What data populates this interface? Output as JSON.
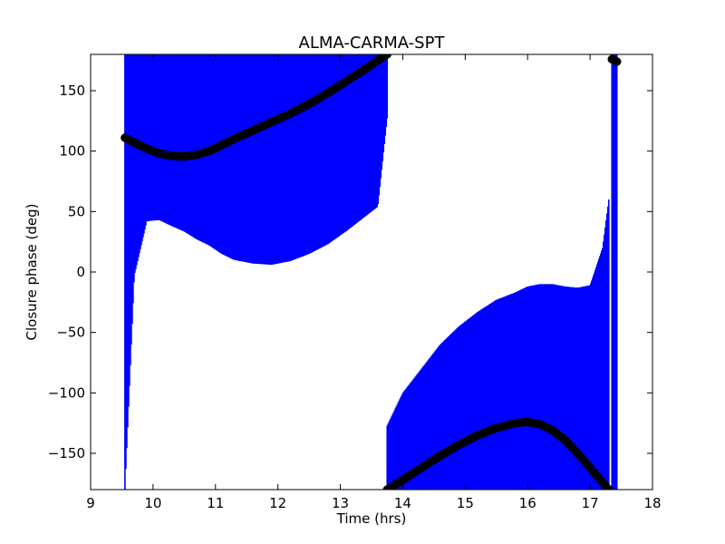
{
  "chart_data": {
    "type": "scatter",
    "title": "ALMA-CARMA-SPT",
    "xlabel": "Time (hrs)",
    "ylabel": "Closure phase (deg)",
    "xlim": [
      9,
      18
    ],
    "ylim": [
      -180,
      180
    ],
    "xticks": [
      9,
      10,
      11,
      12,
      13,
      14,
      15,
      16,
      17,
      18
    ],
    "yticks": [
      -150,
      -100,
      -50,
      0,
      50,
      100,
      150
    ],
    "ytick_labels": [
      "−150",
      "−100",
      "−50",
      "0",
      "50",
      "100",
      "150"
    ],
    "grid": false,
    "error_color": "#0000ff",
    "marker_color": "#000000",
    "series": [
      {
        "x": [
          9.55,
          9.7,
          9.9,
          10.1,
          10.3,
          10.5,
          10.7,
          10.9,
          11.1,
          11.3,
          11.6,
          11.9,
          12.2,
          12.5,
          12.8,
          13.1,
          13.4,
          13.6,
          13.75
        ],
        "y": [
          111,
          107,
          102,
          98,
          96,
          95.5,
          97,
          100,
          105,
          110,
          117,
          124,
          131,
          139,
          148,
          158,
          168,
          175,
          180
        ],
        "err_low": [
          291,
          110,
          60,
          55,
          58,
          62,
          70,
          78,
          90,
          100,
          110,
          118,
          122,
          124,
          125,
          124,
          122,
          121,
          53
        ],
        "err_high": [
          69,
          73,
          78,
          82,
          84,
          84.5,
          83,
          80,
          75,
          70,
          63,
          56,
          49,
          41,
          32,
          22,
          12,
          5,
          0
        ]
      },
      {
        "x": [
          13.75,
          14.0,
          14.3,
          14.6,
          14.9,
          15.2,
          15.5,
          15.8,
          16.0,
          16.2,
          16.4,
          16.6,
          16.8,
          17.0,
          17.2,
          17.3
        ],
        "y": [
          -180,
          -172,
          -162,
          -152,
          -143,
          -135,
          -129,
          -125,
          -124,
          -126,
          -131,
          -139,
          -150,
          -162,
          -174,
          -180
        ],
        "err_low": [
          0,
          8,
          18,
          28,
          37,
          45,
          51,
          55,
          56,
          54,
          49,
          41,
          30,
          18,
          6,
          0
        ],
        "err_high": [
          53,
          72,
          82,
          92,
          98,
          102,
          106,
          108,
          112,
          116,
          121,
          127,
          137,
          151,
          194,
          240
        ]
      },
      {
        "x": [
          17.35,
          17.43
        ],
        "y": [
          176,
          174
        ],
        "err_low": [
          356,
          354
        ],
        "err_high": [
          4,
          6
        ]
      }
    ]
  }
}
